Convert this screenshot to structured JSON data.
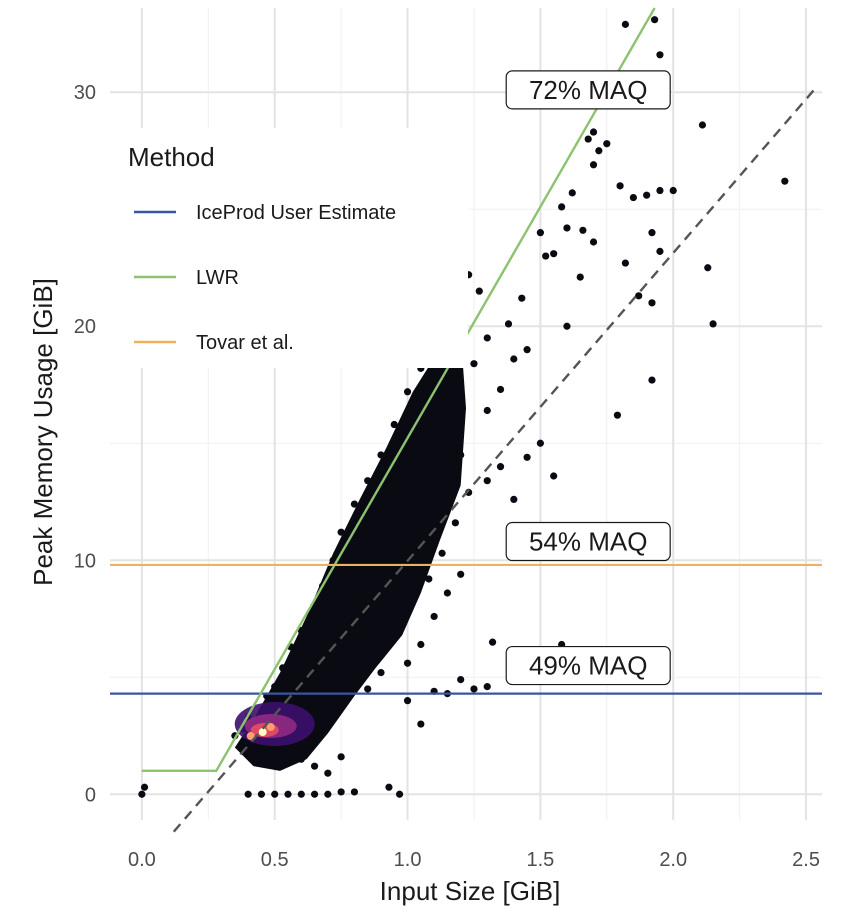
{
  "chart_data": {
    "type": "scatter",
    "title": "",
    "xlabel": "Input Size [GiB]",
    "ylabel": "Peak Memory Usage [GiB]",
    "xlim": [
      -0.12,
      2.56
    ],
    "ylim": [
      -1.1,
      33.6
    ],
    "x_ticks": [
      0.0,
      0.5,
      1.0,
      1.5,
      2.0,
      2.5
    ],
    "x_tick_labels": [
      "0.0",
      "0.5",
      "1.0",
      "1.5",
      "2.0",
      "2.5"
    ],
    "y_ticks": [
      0,
      10,
      20,
      30
    ],
    "y_tick_labels": [
      "0",
      "10",
      "20",
      "30"
    ],
    "grid": true,
    "legend": {
      "title": "Method",
      "position": "top-left",
      "entries": [
        {
          "name": "IceProd User Estimate",
          "color": "#3a55a0"
        },
        {
          "name": "LWR",
          "color": "#8cc36e"
        },
        {
          "name": "Tovar et al.",
          "color": "#ecb25e"
        }
      ]
    },
    "series": [
      {
        "name": "IceProd User Estimate",
        "kind": "hline",
        "y": 4.3,
        "color": "#3a55a0"
      },
      {
        "name": "LWR",
        "kind": "line",
        "color": "#8cc36e",
        "x": [
          0.0,
          0.28,
          1.93
        ],
        "y": [
          1.0,
          1.0,
          33.6
        ]
      },
      {
        "name": "Tovar et al.",
        "kind": "hline",
        "y": 9.8,
        "color": "#ecb25e"
      },
      {
        "kind": "reference-line",
        "style": "dashed",
        "color": "#555555",
        "x": [
          0.12,
          2.53
        ],
        "y": [
          -1.6,
          30.1
        ]
      }
    ],
    "annotations": [
      {
        "text": "72% MAQ",
        "x": 1.68,
        "y": 30.1
      },
      {
        "text": "54% MAQ",
        "x": 1.68,
        "y": 10.8
      },
      {
        "text": "49% MAQ",
        "x": 1.68,
        "y": 5.5
      }
    ],
    "density_hotspot": {
      "x": 0.5,
      "y": 3.0
    },
    "point_color": "#0a0a12",
    "points": [
      [
        0.0,
        0.0
      ],
      [
        0.01,
        0.3
      ],
      [
        0.4,
        0.0
      ],
      [
        0.45,
        0.0
      ],
      [
        0.5,
        0.0
      ],
      [
        0.55,
        0.0
      ],
      [
        0.6,
        0.0
      ],
      [
        0.65,
        0.0
      ],
      [
        0.7,
        0.0
      ],
      [
        0.75,
        0.1
      ],
      [
        0.8,
        0.1
      ],
      [
        0.93,
        0.3
      ],
      [
        0.97,
        0.0
      ],
      [
        0.35,
        2.5
      ],
      [
        0.38,
        2.8
      ],
      [
        0.4,
        3.3
      ],
      [
        0.45,
        3.5
      ],
      [
        0.47,
        4.2
      ],
      [
        0.5,
        4.6
      ],
      [
        0.53,
        5.4
      ],
      [
        0.56,
        6.3
      ],
      [
        0.6,
        7.0
      ],
      [
        0.64,
        7.8
      ],
      [
        0.68,
        8.9
      ],
      [
        0.72,
        10.0
      ],
      [
        0.75,
        11.2
      ],
      [
        0.8,
        12.4
      ],
      [
        0.85,
        13.4
      ],
      [
        0.9,
        14.5
      ],
      [
        0.95,
        15.8
      ],
      [
        1.0,
        17.2
      ],
      [
        1.05,
        18.2
      ],
      [
        1.1,
        19.1
      ],
      [
        1.15,
        20.4
      ],
      [
        1.2,
        21.4
      ],
      [
        1.23,
        22.2
      ],
      [
        1.27,
        21.5
      ],
      [
        0.55,
        3.0
      ],
      [
        0.6,
        3.4
      ],
      [
        0.65,
        4.0
      ],
      [
        0.7,
        4.7
      ],
      [
        0.75,
        5.7
      ],
      [
        0.8,
        6.5
      ],
      [
        0.85,
        7.3
      ],
      [
        0.9,
        8.4
      ],
      [
        0.95,
        9.3
      ],
      [
        1.0,
        10.2
      ],
      [
        1.05,
        11.5
      ],
      [
        1.1,
        12.6
      ],
      [
        1.15,
        13.8
      ],
      [
        1.2,
        14.5
      ],
      [
        0.62,
        2.5
      ],
      [
        0.67,
        3.2
      ],
      [
        0.73,
        4.1
      ],
      [
        0.78,
        4.9
      ],
      [
        0.83,
        5.5
      ],
      [
        0.88,
        6.2
      ],
      [
        0.93,
        7.0
      ],
      [
        0.98,
        7.8
      ],
      [
        1.03,
        8.7
      ],
      [
        1.08,
        9.2
      ],
      [
        1.13,
        10.3
      ],
      [
        1.18,
        11.6
      ],
      [
        1.23,
        12.9
      ],
      [
        0.5,
        2.0
      ],
      [
        0.55,
        1.8
      ],
      [
        0.6,
        1.5
      ],
      [
        0.65,
        1.2
      ],
      [
        0.7,
        0.9
      ],
      [
        0.75,
        1.6
      ],
      [
        0.85,
        4.5
      ],
      [
        0.9,
        5.2
      ],
      [
        1.0,
        5.6
      ],
      [
        1.05,
        6.4
      ],
      [
        1.1,
        7.6
      ],
      [
        1.15,
        8.6
      ],
      [
        1.2,
        9.4
      ],
      [
        1.3,
        13.4
      ],
      [
        1.35,
        14.0
      ],
      [
        1.4,
        12.6
      ],
      [
        1.45,
        14.4
      ],
      [
        1.5,
        15.0
      ],
      [
        1.55,
        13.6
      ],
      [
        1.3,
        16.4
      ],
      [
        1.35,
        17.3
      ],
      [
        1.4,
        18.6
      ],
      [
        1.45,
        19.0
      ],
      [
        1.55,
        23.1
      ],
      [
        1.6,
        24.2
      ],
      [
        1.25,
        18.4
      ],
      [
        1.3,
        19.5
      ],
      [
        1.38,
        20.1
      ],
      [
        1.43,
        21.2
      ],
      [
        1.5,
        24.0
      ],
      [
        1.52,
        23.0
      ],
      [
        1.58,
        25.1
      ],
      [
        1.62,
        25.7
      ],
      [
        1.66,
        24.1
      ],
      [
        1.7,
        23.6
      ],
      [
        1.6,
        20.0
      ],
      [
        1.65,
        22.1
      ],
      [
        1.7,
        26.9
      ],
      [
        1.72,
        27.5
      ],
      [
        1.68,
        28.0
      ],
      [
        1.75,
        27.8
      ],
      [
        1.8,
        26.0
      ],
      [
        1.85,
        25.5
      ],
      [
        1.9,
        25.6
      ],
      [
        1.95,
        25.8
      ],
      [
        2.0,
        25.8
      ],
      [
        1.95,
        23.2
      ],
      [
        1.92,
        24.0
      ],
      [
        1.82,
        22.7
      ],
      [
        1.87,
        21.3
      ],
      [
        1.92,
        21.0
      ],
      [
        1.79,
        16.2
      ],
      [
        1.92,
        17.7
      ],
      [
        2.11,
        28.6
      ],
      [
        2.13,
        22.5
      ],
      [
        2.15,
        20.1
      ],
      [
        2.42,
        26.2
      ],
      [
        1.82,
        32.9
      ],
      [
        1.93,
        33.1
      ],
      [
        1.95,
        31.6
      ],
      [
        1.7,
        28.3
      ],
      [
        1.32,
        6.5
      ],
      [
        1.2,
        4.9
      ],
      [
        1.15,
        4.3
      ],
      [
        1.25,
        4.5
      ],
      [
        1.3,
        4.6
      ],
      [
        1.05,
        3.0
      ],
      [
        1.1,
        4.4
      ],
      [
        1.0,
        4.0
      ],
      [
        1.58,
        6.4
      ],
      [
        1.65,
        5.0
      ]
    ]
  }
}
